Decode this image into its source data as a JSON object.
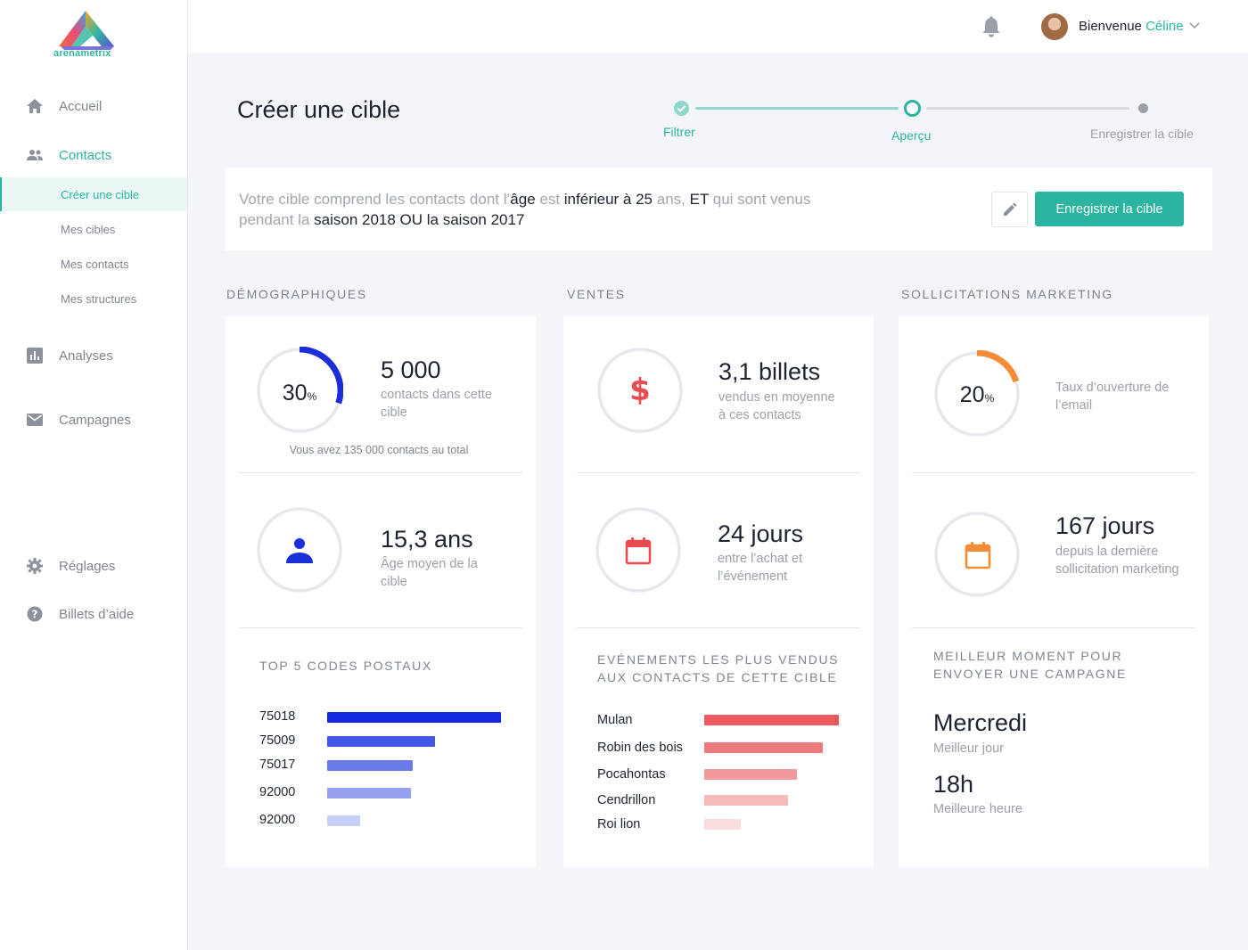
{
  "brand": {
    "name": "arenametrix"
  },
  "sidebar": {
    "home": "Accueil",
    "contacts": "Contacts",
    "sub": [
      "Créer une cible",
      "Mes cibles",
      "Mes contacts",
      "Mes structures"
    ],
    "analyses": "Analyses",
    "campaigns": "Campagnes",
    "settings": "Réglages",
    "help": "Billets d’aide"
  },
  "header": {
    "greeting": "Bienvenue",
    "user": "Céline"
  },
  "page": {
    "title": "Créer une cible"
  },
  "stepper": {
    "steps": [
      "Filtrer",
      "Aperçu",
      "Enregistrer la cible"
    ],
    "current": 1
  },
  "summary": {
    "parts": [
      {
        "t": "Votre cible comprend les contacts dont l’",
        "hl": false
      },
      {
        "t": "âge",
        "hl": true
      },
      {
        "t": " est ",
        "hl": false
      },
      {
        "t": "inférieur à 25",
        "hl": true
      },
      {
        "t": " ans, ",
        "hl": false
      },
      {
        "t": "ET",
        "hl": true
      },
      {
        "t": " qui sont venus pendant la ",
        "hl": false
      },
      {
        "t": "saison 2018 OU la saison 2017",
        "hl": true
      }
    ],
    "save_label": "Enregistrer la cible"
  },
  "demo": {
    "title": "DÉMOGRAPHIQUES",
    "pct": "30",
    "pct_unit": "%",
    "pct_fraction": 0.3,
    "ring_color": "#1a2fd9",
    "count": "5 000",
    "count_desc": "contacts dans cette cible",
    "total_caption": "Vous avez 135 000 contacts au total",
    "age": "15,3 ans",
    "age_desc": "Âge moyen de la cible",
    "zip_title": "TOP 5 CODES POSTAUX",
    "zips": [
      {
        "code": "75018",
        "value": 100,
        "color": "#1428e0"
      },
      {
        "code": "75009",
        "value": 62,
        "color": "#4357e4"
      },
      {
        "code": "75017",
        "value": 49,
        "color": "#6a7ae8"
      },
      {
        "code": "92000",
        "value": 48,
        "color": "#95a1ee"
      },
      {
        "code": "92000",
        "value": 19,
        "color": "#c8cff6"
      }
    ]
  },
  "sales": {
    "title": "VENTES",
    "tickets": "3,1 billets",
    "tickets_desc": "vendus en moyenne à ces contacts",
    "days": "24 jours",
    "days_desc": "entre l’achat et l’événement",
    "events_title": "EVÉNEMENTS LES PLUS VENDUS AUX CONTACTS DE CETTE CIBLE",
    "events": [
      {
        "name": "Mulan",
        "value": 100,
        "color": "#e85a5e"
      },
      {
        "name": "Robin des bois",
        "value": 88,
        "color": "#ed7b7d"
      },
      {
        "name": "Pocahontas",
        "value": 69,
        "color": "#f29a9b"
      },
      {
        "name": "Cendrillon",
        "value": 62,
        "color": "#f6babb"
      },
      {
        "name": "Roi lion",
        "value": 27,
        "color": "#fadedf"
      }
    ],
    "accent": "#e84c50"
  },
  "marketing": {
    "title": "SOLLICITATIONS MARKETING",
    "pct": "20",
    "pct_unit": "%",
    "pct_fraction": 0.2,
    "ring_color": "#f78c36",
    "pct_desc": "Taux d’ouverture de l’email",
    "days": "167 jours",
    "days_desc": "depuis la dernière sollicitation marketing",
    "best_title": "MEILLEUR MOMENT POUR ENVOYER UNE CAMPAGNE",
    "best_day": "Mercredi",
    "best_day_label": "Meilleur jour",
    "best_hour": "18h",
    "best_hour_label": "Meilleure heure"
  },
  "colors": {
    "accent": "#2bb5a0",
    "muted": "#9a9fa9"
  }
}
